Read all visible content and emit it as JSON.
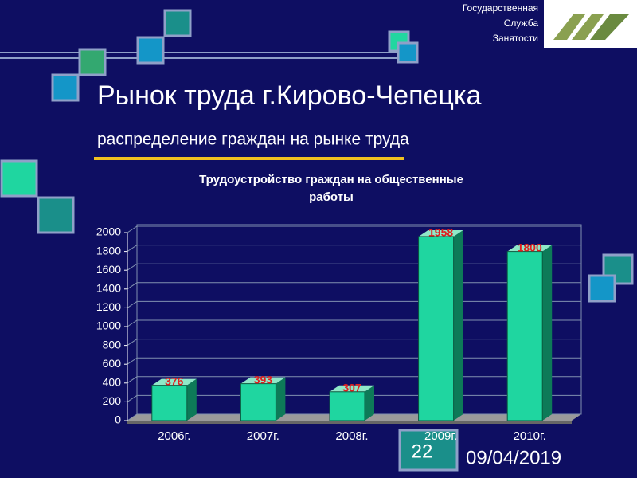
{
  "header": {
    "org": [
      "Государственная",
      "Служба",
      "Занятости"
    ],
    "title": "Рынок труда г.Кирово-Чепецка",
    "subtitle": "распределение граждан на рынке труда"
  },
  "chart_data": {
    "type": "bar",
    "title": [
      "Трудоустройство граждан на общественные",
      "работы"
    ],
    "categories": [
      "2006г.",
      "2007г.",
      "2008г.",
      "2009г.",
      "2010г."
    ],
    "values": [
      376,
      393,
      307,
      1958,
      1800
    ],
    "color": "#1fd6a0",
    "label_color": "#e02020",
    "ylim": [
      0,
      2000
    ],
    "yticks": [
      0,
      200,
      400,
      600,
      800,
      1000,
      1200,
      1400,
      1600,
      1800,
      2000
    ],
    "grid": true
  },
  "footer": {
    "slide_number": "22",
    "date": "09/04/2019"
  }
}
